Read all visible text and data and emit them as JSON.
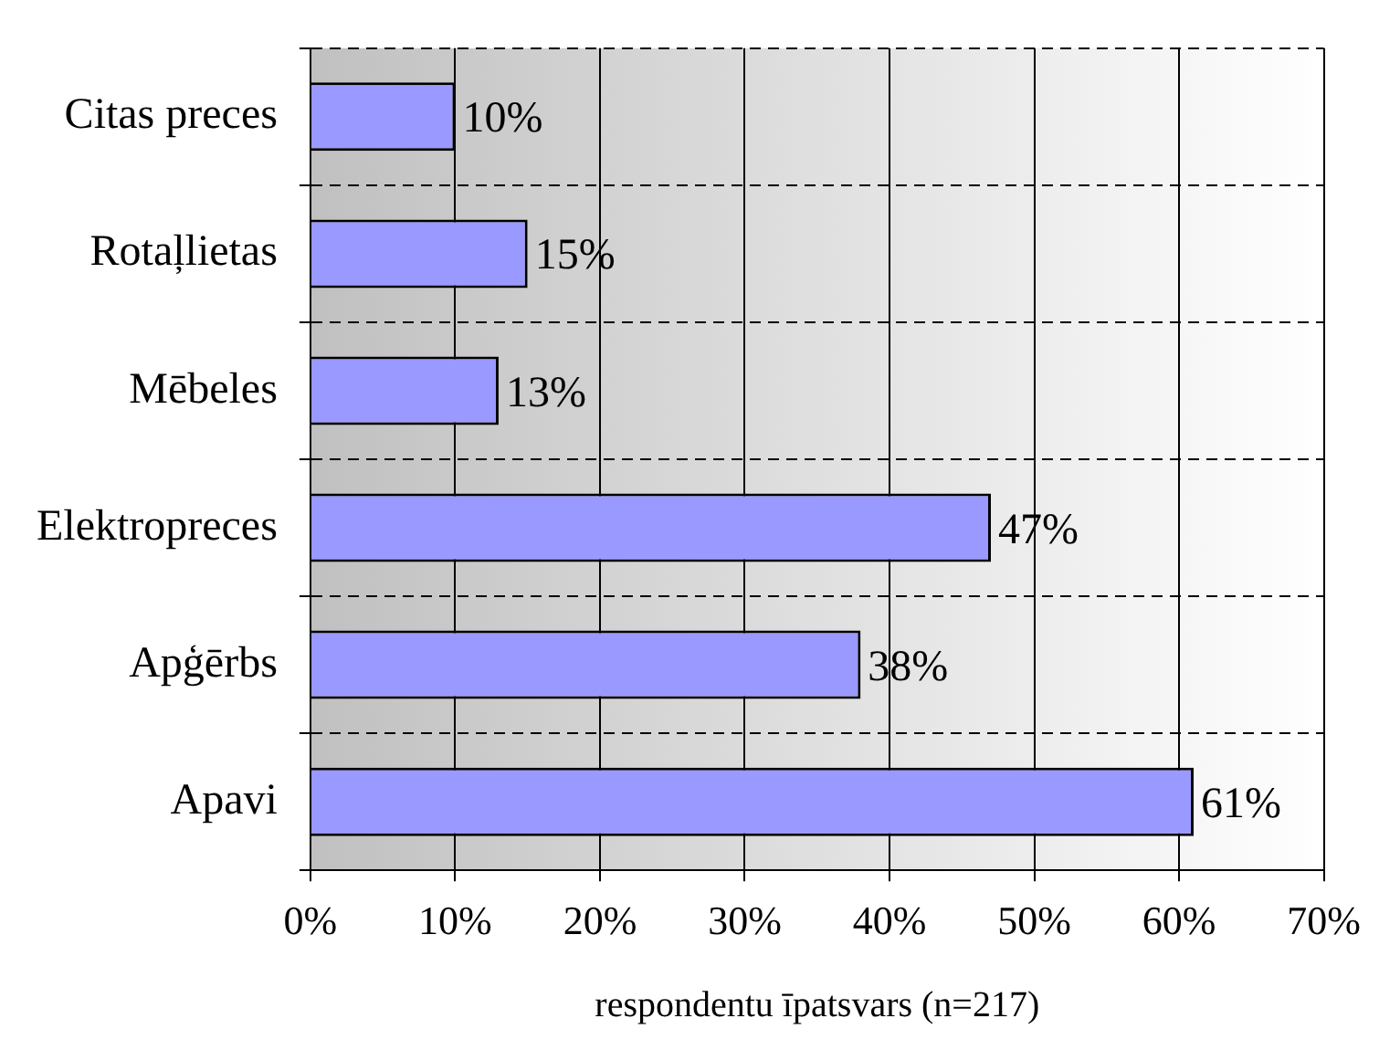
{
  "chart_data": {
    "type": "bar",
    "orientation": "horizontal",
    "xlabel": "respondentu īpatsvars (n=217)",
    "categories": [
      "Citas preces",
      "Rotaļlietas",
      "Mēbeles",
      "Elektropreces",
      "Apģērbs",
      "Apavi"
    ],
    "values": [
      10,
      15,
      13,
      47,
      38,
      61
    ],
    "value_labels": [
      "10%",
      "15%",
      "13%",
      "47%",
      "38%",
      "61%"
    ],
    "color": "#9999ff",
    "xlim": [
      0,
      70
    ],
    "xticks": [
      {
        "value": 0,
        "label": "0%"
      },
      {
        "value": 10,
        "label": "10%"
      },
      {
        "value": 20,
        "label": "20%"
      },
      {
        "value": 30,
        "label": "30%"
      },
      {
        "value": 40,
        "label": "40%"
      },
      {
        "value": 50,
        "label": "50%"
      },
      {
        "value": 60,
        "label": "60%"
      },
      {
        "value": 70,
        "label": "70%"
      }
    ],
    "grid": true,
    "legend": false
  }
}
